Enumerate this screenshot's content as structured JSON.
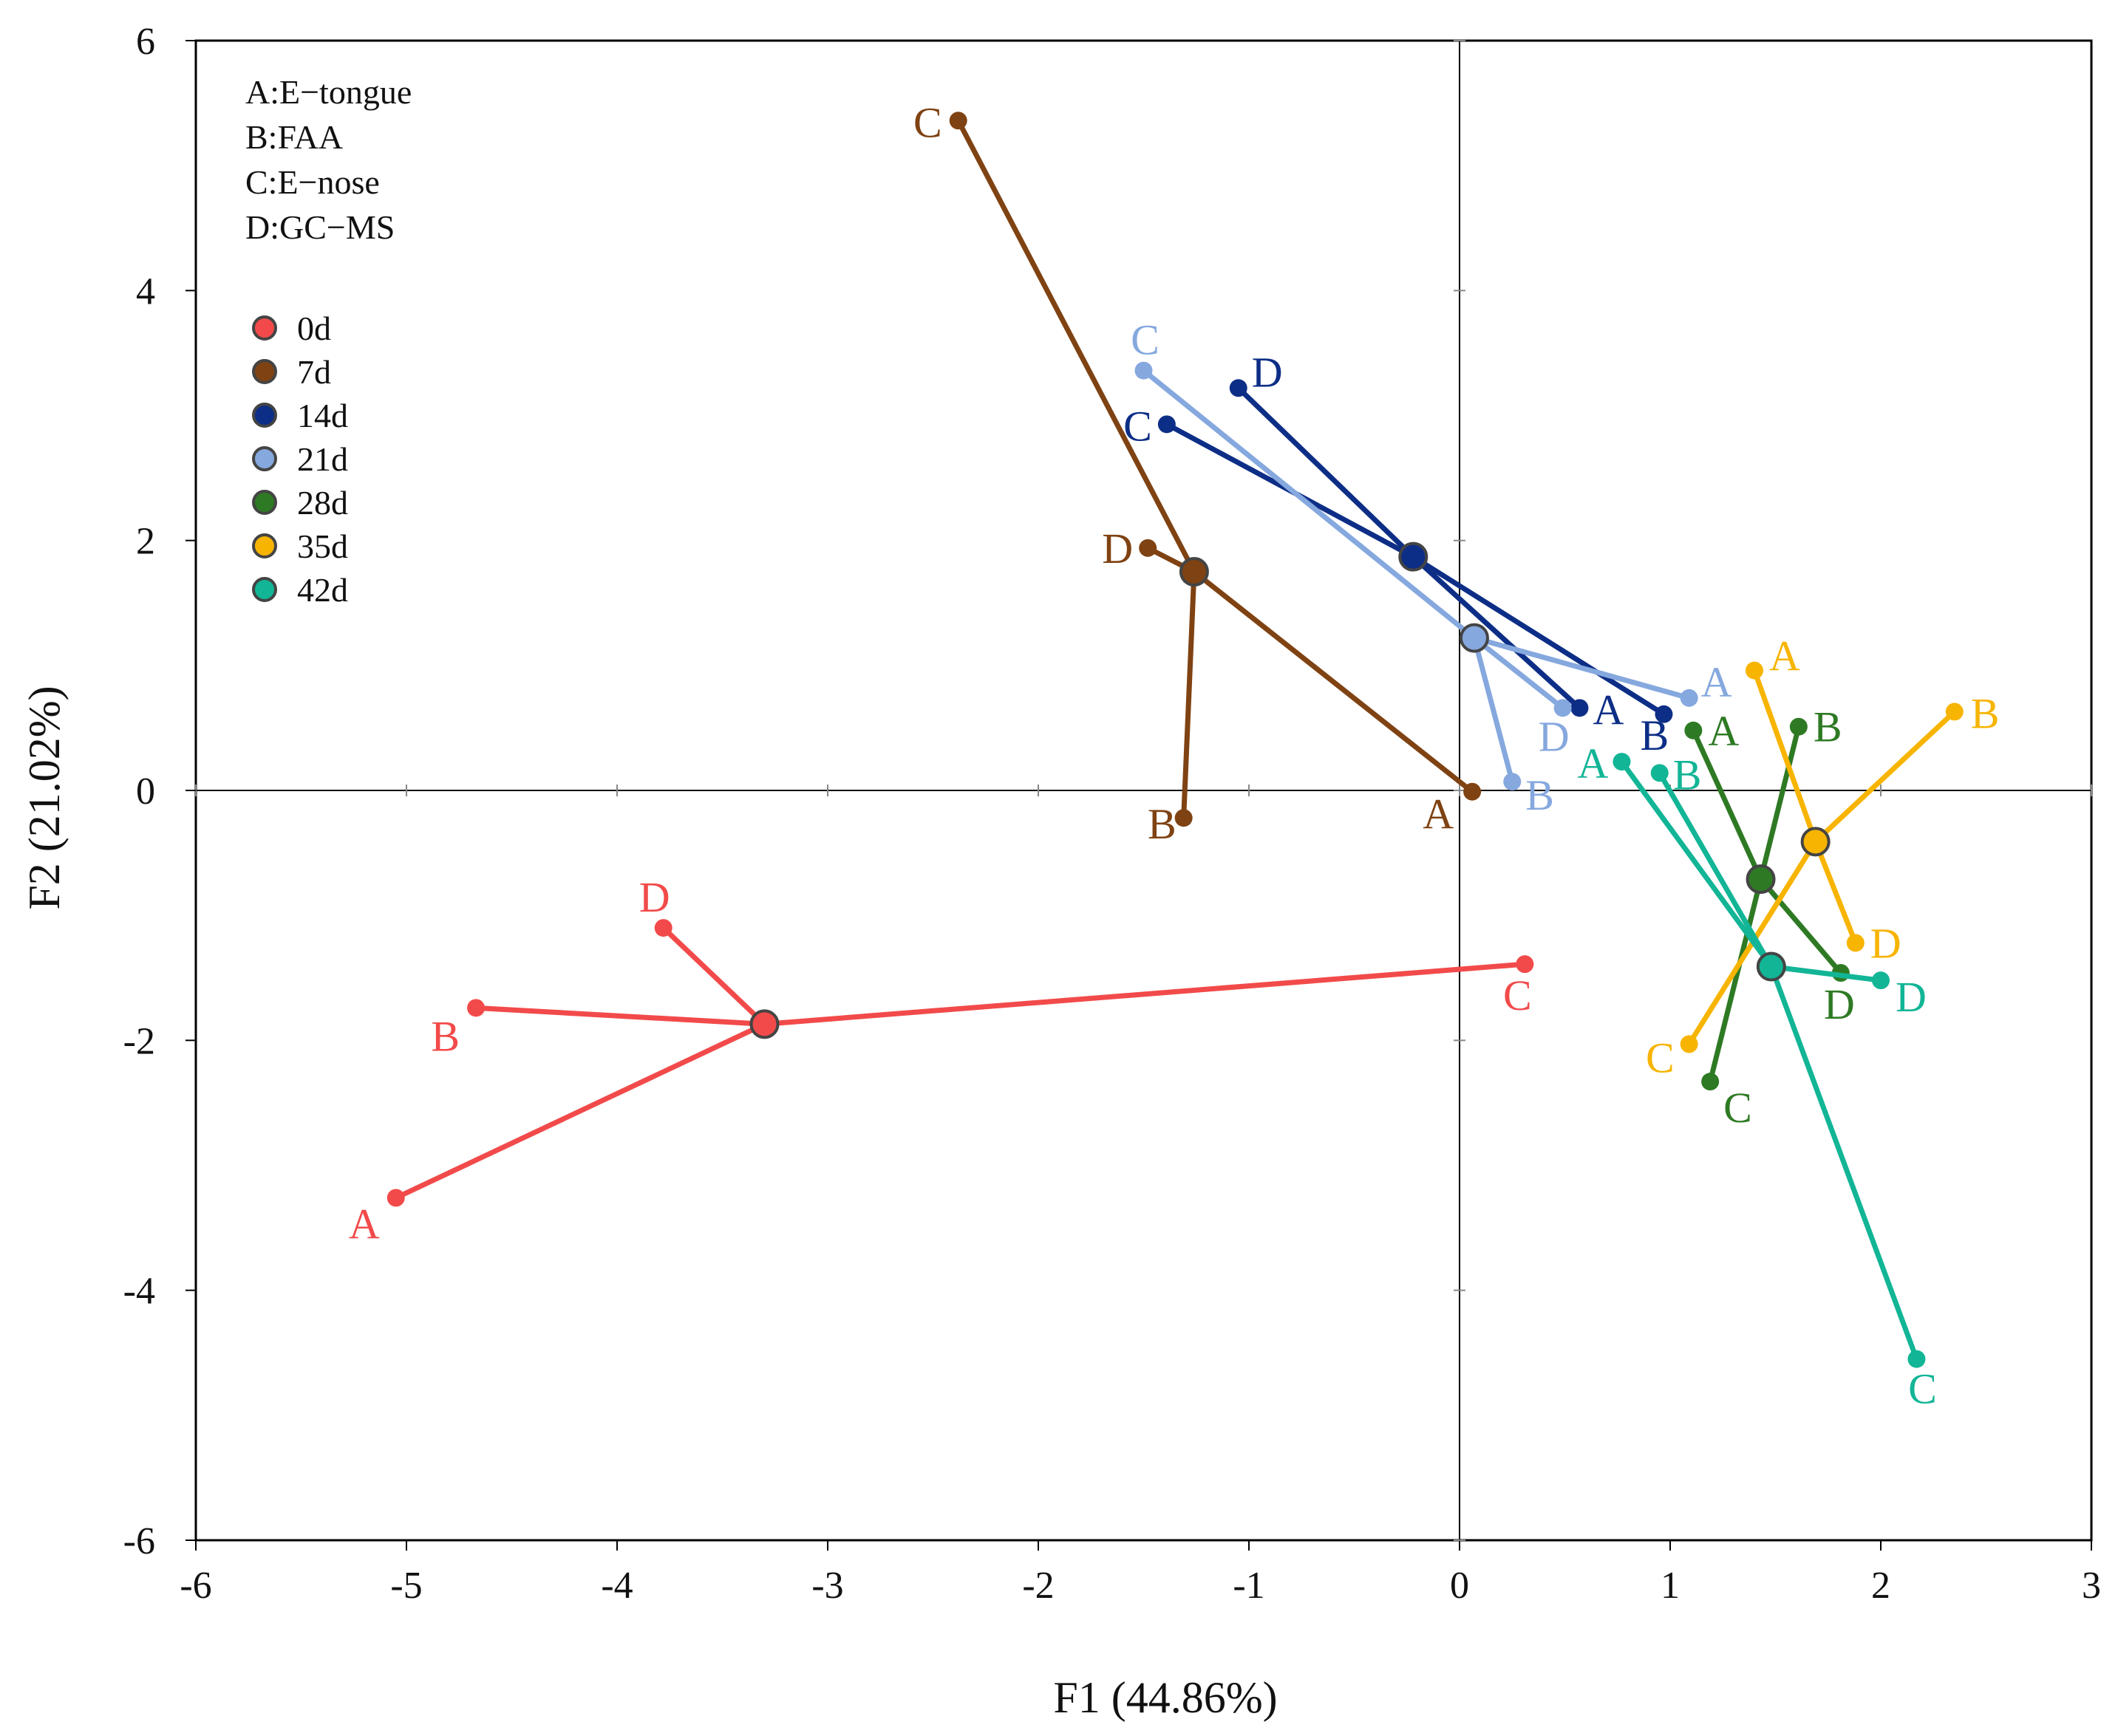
{
  "chart_data": {
    "type": "scatter",
    "title": "",
    "xlabel": "F1 (44.86%)",
    "ylabel": "F2 (21.02%)",
    "xlim": [
      -6,
      3
    ],
    "ylim": [
      -6,
      6
    ],
    "xticks": [
      -6,
      -5,
      -4,
      -3,
      -2,
      -1,
      0,
      1,
      2,
      3
    ],
    "yticks": [
      -6,
      -4,
      -2,
      0,
      2,
      4,
      6
    ],
    "method_legend": [
      "A:E−tongue",
      "B:FAA",
      "C:E−nose",
      "D:GC−MS"
    ],
    "series": [
      {
        "name": "0d",
        "color": "#F24A4A",
        "center": [
          -3.3,
          -1.87
        ],
        "points": [
          {
            "label": "A",
            "x": -5.05,
            "y": -3.26
          },
          {
            "label": "B",
            "x": -4.67,
            "y": -1.74
          },
          {
            "label": "C",
            "x": 0.31,
            "y": -1.39
          },
          {
            "label": "D",
            "x": -3.78,
            "y": -1.1
          }
        ]
      },
      {
        "name": "7d",
        "color": "#7F4212",
        "center": [
          -1.26,
          1.75
        ],
        "points": [
          {
            "label": "A",
            "x": 0.06,
            "y": -0.01
          },
          {
            "label": "B",
            "x": -1.31,
            "y": -0.22
          },
          {
            "label": "C",
            "x": -2.38,
            "y": 5.36
          },
          {
            "label": "D",
            "x": -1.48,
            "y": 1.94
          }
        ]
      },
      {
        "name": "14d",
        "color": "#0D2E86",
        "center": [
          -0.22,
          1.87
        ],
        "points": [
          {
            "label": "A",
            "x": 0.57,
            "y": 0.66
          },
          {
            "label": "B",
            "x": 0.97,
            "y": 0.61
          },
          {
            "label": "C",
            "x": -1.39,
            "y": 2.93
          },
          {
            "label": "D",
            "x": -1.05,
            "y": 3.22
          }
        ]
      },
      {
        "name": "21d",
        "color": "#85A8DE",
        "center": [
          0.07,
          1.22
        ],
        "points": [
          {
            "label": "A",
            "x": 1.09,
            "y": 0.74
          },
          {
            "label": "B",
            "x": 0.25,
            "y": 0.07
          },
          {
            "label": "C",
            "x": -1.5,
            "y": 3.36
          },
          {
            "label": "D",
            "x": 0.49,
            "y": 0.66
          }
        ]
      },
      {
        "name": "28d",
        "color": "#2E7A24",
        "center": [
          1.43,
          -0.71
        ],
        "points": [
          {
            "label": "A",
            "x": 1.11,
            "y": 0.48
          },
          {
            "label": "B",
            "x": 1.61,
            "y": 0.51
          },
          {
            "label": "C",
            "x": 1.19,
            "y": -2.33
          },
          {
            "label": "D",
            "x": 1.81,
            "y": -1.46
          }
        ]
      },
      {
        "name": "35d",
        "color": "#F7B400",
        "center": [
          1.69,
          -0.41
        ],
        "points": [
          {
            "label": "A",
            "x": 1.4,
            "y": 0.96
          },
          {
            "label": "B",
            "x": 2.35,
            "y": 0.63
          },
          {
            "label": "C",
            "x": 1.09,
            "y": -2.03
          },
          {
            "label": "D",
            "x": 1.88,
            "y": -1.22
          }
        ]
      },
      {
        "name": "42d",
        "color": "#12B596",
        "center": [
          1.48,
          -1.41
        ],
        "points": [
          {
            "label": "A",
            "x": 0.77,
            "y": 0.23
          },
          {
            "label": "B",
            "x": 0.95,
            "y": 0.14
          },
          {
            "label": "C",
            "x": 2.17,
            "y": -4.55
          },
          {
            "label": "D",
            "x": 2.0,
            "y": -1.52
          }
        ]
      }
    ]
  }
}
